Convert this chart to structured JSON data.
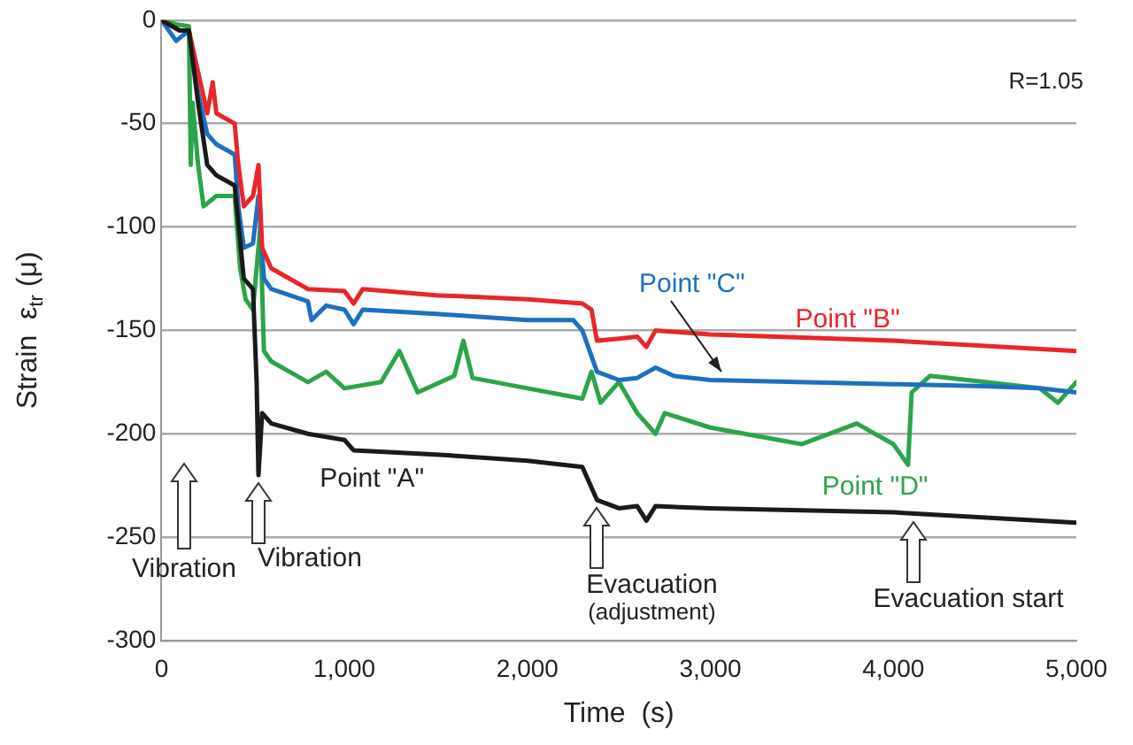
{
  "chart_data": {
    "type": "line",
    "xlabel": "Time  (s)",
    "ylabel": "Strain  ε$_{tr}$ (μ)",
    "xlim": [
      0,
      5000
    ],
    "ylim": [
      -300,
      0
    ],
    "xticks": [
      0,
      {
        "value": 1000,
        "label": "1,000"
      },
      {
        "value": 2000,
        "label": "2,000"
      },
      {
        "value": 3000,
        "label": "3,000"
      },
      {
        "value": 4000,
        "label": "4,000"
      },
      {
        "value": 5000,
        "label": "5,000"
      }
    ],
    "yticks": [
      -300,
      -250,
      -200,
      -150,
      -100,
      -50,
      0
    ],
    "grid": "y",
    "legend": false,
    "marker": "none",
    "line_style": "solid",
    "series": [
      {
        "name": "Point \"A\"",
        "color": "#1a1a1a",
        "x": [
          0,
          100,
          150,
          200,
          250,
          300,
          400,
          450,
          500,
          520,
          530,
          550,
          600,
          800,
          1000,
          1050,
          1500,
          2000,
          2300,
          2380,
          2500,
          2600,
          2650,
          2700,
          3000,
          4000,
          5000
        ],
        "values": [
          0,
          -5,
          -5,
          -40,
          -70,
          -75,
          -80,
          -125,
          -130,
          -175,
          -220,
          -190,
          -195,
          -200,
          -203,
          -208,
          -210,
          -213,
          -216,
          -232,
          -236,
          -235,
          -242,
          -235,
          -236,
          -238,
          -243
        ]
      },
      {
        "name": "Point \"B\"",
        "color": "#e8262a",
        "x": [
          0,
          100,
          150,
          200,
          250,
          280,
          300,
          400,
          420,
          450,
          500,
          530,
          550,
          600,
          700,
          800,
          1000,
          1050,
          1100,
          1500,
          2000,
          2300,
          2350,
          2380,
          2500,
          2600,
          2650,
          2700,
          3000,
          4000,
          5000
        ],
        "values": [
          0,
          -5,
          -5,
          -25,
          -45,
          -30,
          -45,
          -50,
          -70,
          -90,
          -85,
          -70,
          -110,
          -120,
          -125,
          -130,
          -131,
          -137,
          -130,
          -133,
          -135,
          -137,
          -140,
          -155,
          -154,
          -153,
          -158,
          -150,
          -152,
          -155,
          -160
        ]
      },
      {
        "name": "Point \"C\"",
        "color": "#1f6fc0",
        "x": [
          0,
          80,
          150,
          200,
          250,
          300,
          400,
          420,
          450,
          500,
          530,
          560,
          600,
          700,
          800,
          820,
          900,
          1000,
          1050,
          1100,
          1500,
          2000,
          2250,
          2300,
          2380,
          2500,
          2600,
          2700,
          2800,
          3000,
          4000,
          4500,
          4800,
          5000
        ],
        "values": [
          0,
          -10,
          -5,
          -35,
          -55,
          -60,
          -65,
          -90,
          -110,
          -108,
          -85,
          -125,
          -130,
          -133,
          -136,
          -145,
          -138,
          -140,
          -147,
          -140,
          -142,
          -145,
          -145,
          -150,
          -170,
          -174,
          -173,
          -168,
          -172,
          -174,
          -176,
          -177,
          -178,
          -180
        ]
      },
      {
        "name": "Point \"D\"",
        "color": "#2ca44a",
        "x": [
          0,
          80,
          150,
          160,
          170,
          200,
          230,
          300,
          400,
          430,
          460,
          500,
          540,
          560,
          600,
          700,
          800,
          900,
          1000,
          1200,
          1300,
          1400,
          1600,
          1650,
          1700,
          2000,
          2300,
          2350,
          2400,
          2500,
          2600,
          2700,
          2750,
          3000,
          3500,
          3800,
          4000,
          4080,
          4100,
          4200,
          4500,
          4800,
          4900,
          5000
        ],
        "values": [
          0,
          -2,
          -3,
          -70,
          -40,
          -70,
          -90,
          -85,
          -85,
          -120,
          -135,
          -140,
          -100,
          -160,
          -165,
          -170,
          -175,
          -170,
          -178,
          -175,
          -160,
          -180,
          -172,
          -155,
          -173,
          -178,
          -183,
          -170,
          -185,
          -175,
          -190,
          -200,
          -190,
          -197,
          -205,
          -195,
          -205,
          -215,
          -180,
          -172,
          -175,
          -178,
          -185,
          -175
        ]
      }
    ],
    "annotations": [
      "R=1.05",
      "Vibration",
      {
        "text": "Vibration",
        "x": 530,
        "y": -220
      },
      {
        "text": "Evacuation\n(adjustment)",
        "x": 2380,
        "y": -232
      },
      {
        "text": "Evacuation start",
        "x": 4110,
        "y": -239
      }
    ]
  }
}
